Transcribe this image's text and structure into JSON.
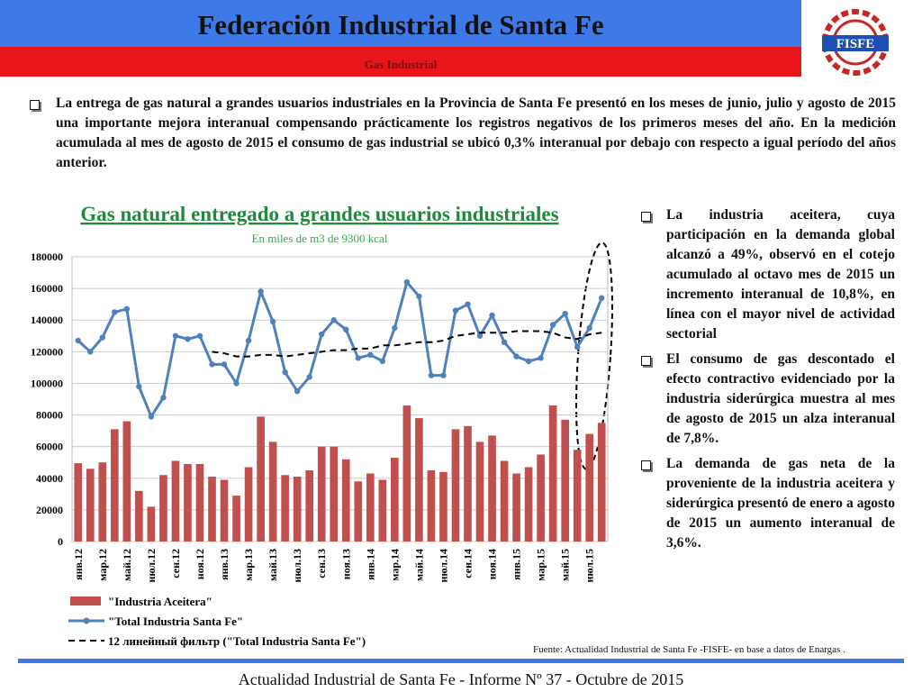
{
  "header": {
    "title": "Federación Industrial de Santa Fe",
    "subtitle": "Gas Industrial",
    "logo": "FISFE"
  },
  "intro": "La entrega de gas natural a grandes usuarios industriales en la Provincia de Santa Fe presentó en los meses de junio, julio y agosto de 2015 una importante mejora interanual compensando prácticamente los registros negativos de los primeros meses del año. En la medición acumulada al mes de agosto de 2015 el consumo de gas industrial se ubicó 0,3% interanual por debajo con respecto a igual período del años anterior.",
  "bullets": [
    "La industria aceitera, cuya participación en la demanda global alcanzó a 49%, observó en el cotejo acumulado al octavo mes de 2015 un incremento interanual de 10,8%, en línea con el mayor nivel de actividad sectorial",
    "El consumo de gas descontado el efecto contractivo evidenciado por la industria siderúrgica muestra al mes de agosto de 2015 un alza interanual de 7,8%.",
    "La demanda de gas neta de la proveniente de la industria aceitera y siderúrgica presentó de enero a agosto de 2015 un aumento interanual de 3,6%."
  ],
  "source": "Fuente: Actualidad Industrial de Santa Fe -FISFE- en base a datos de Enargas .",
  "footer": "Actualidad Industrial de Santa Fe - Informe Nº 37 - Octubre de 2015",
  "chart_data": {
    "type": "bar_line",
    "title": "Gas natural entregado a grandes usuarios industriales",
    "subtitle": "En miles de m3 de 9300 kcal",
    "categories": [
      "янв.12",
      null,
      "мар.12",
      null,
      "май.12",
      null,
      "июл.12",
      null,
      "сен.12",
      null,
      "ноя.12",
      null,
      "янв.13",
      null,
      "мар.13",
      null,
      "май.13",
      null,
      "июл.13",
      null,
      "сен.13",
      null,
      "ноя.13",
      null,
      "янв.14",
      null,
      "мар.14",
      null,
      "май.14",
      null,
      "июл.14",
      null,
      "сен.14",
      null,
      "ноя.14",
      null,
      "янв.15",
      null,
      "мар.15",
      null,
      "май.15",
      null,
      "июл.15",
      null
    ],
    "series": [
      {
        "name": "\"Industria Aceitera\"",
        "style": "bar",
        "color": "#c0504d",
        "values": [
          49500,
          46000,
          50000,
          71000,
          76000,
          32000,
          22000,
          42000,
          51000,
          49000,
          49000,
          41000,
          39000,
          29000,
          47000,
          79000,
          63000,
          42000,
          41000,
          45000,
          60000,
          60000,
          52000,
          38000,
          43000,
          39000,
          53000,
          86000,
          78000,
          45000,
          44000,
          71000,
          73000,
          63000,
          67000,
          51000,
          43000,
          47000,
          55000,
          86000,
          77000,
          58000,
          68000,
          75000
        ]
      },
      {
        "name": "\"Total Industria Santa Fe\"",
        "style": "line",
        "color": "#4f81bd",
        "values": [
          127000,
          120000,
          129000,
          145000,
          147000,
          98000,
          79000,
          91000,
          130000,
          128000,
          130000,
          112000,
          112000,
          100000,
          127000,
          158000,
          139000,
          107000,
          95000,
          104000,
          131000,
          140000,
          134000,
          116000,
          118000,
          114000,
          135000,
          164000,
          155000,
          105000,
          105000,
          146000,
          150000,
          130000,
          143000,
          126000,
          117000,
          114000,
          116000,
          137000,
          144000,
          123000,
          135000,
          154000
        ]
      },
      {
        "name": "12 линейный фильтр (\"Total Industria Santa Fe\")",
        "style": "dashed",
        "color": "#000000",
        "values": [
          null,
          null,
          null,
          null,
          null,
          null,
          null,
          null,
          null,
          null,
          null,
          120000,
          119000,
          117000,
          117000,
          118000,
          118000,
          117000,
          118000,
          119000,
          120000,
          121000,
          121000,
          122000,
          122000,
          124000,
          124000,
          125000,
          126000,
          126000,
          127000,
          130000,
          131000,
          132000,
          132000,
          132000,
          133000,
          133000,
          133000,
          132000,
          129000,
          128000,
          131000,
          132000
        ]
      }
    ],
    "ylim": [
      0,
      180000
    ],
    "yticks": [
      0,
      20000,
      40000,
      60000,
      80000,
      100000,
      120000,
      140000,
      160000,
      180000
    ]
  }
}
